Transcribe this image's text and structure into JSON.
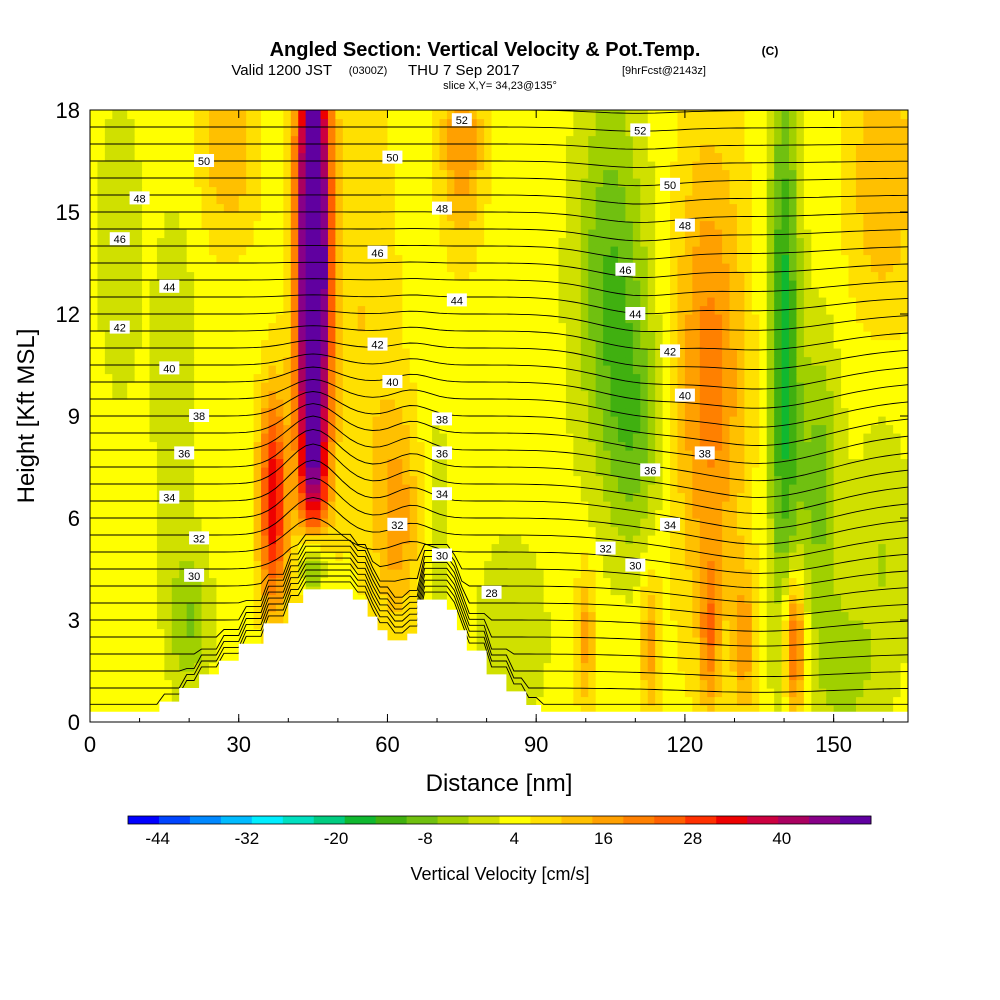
{
  "chart_data": {
    "type": "heatmap",
    "title": "Angled Section: Vertical Velocity & Pot.Temp.",
    "title_note": "(C)",
    "subtitle": {
      "valid": "Valid 1200 JST",
      "utc": "(0300Z)",
      "date": "THU 7 Sep 2017",
      "forecast": "[9hrFcst@2143z]"
    },
    "slice_label": "slice X,Y= 34,23@135°",
    "xlabel": "Distance [nm]",
    "ylabel": "Height [Kft MSL]",
    "xlim": [
      0,
      165
    ],
    "ylim": [
      0,
      18
    ],
    "x_ticks": [
      "0",
      "30",
      "60",
      "90",
      "120",
      "150"
    ],
    "y_ticks": [
      "0",
      "3",
      "6",
      "9",
      "12",
      "15",
      "18"
    ],
    "grid": false,
    "colorbar": {
      "label": "Vertical Velocity [cm/s]",
      "min": -48,
      "max": 52,
      "step": 4,
      "tick_labels": [
        "-44",
        "-32",
        "-20",
        "-8",
        "4",
        "16",
        "28",
        "40"
      ],
      "colors": [
        "#0000ff",
        "#0044ff",
        "#0088ff",
        "#00bbff",
        "#00eeff",
        "#00e0c0",
        "#00cc80",
        "#10b830",
        "#40b010",
        "#70c010",
        "#a0d000",
        "#d0e000",
        "#ffff00",
        "#ffe000",
        "#ffc000",
        "#ffa000",
        "#ff8000",
        "#ff6000",
        "#ff3000",
        "#ee0000",
        "#cc0040",
        "#aa0060",
        "#880088",
        "#6000a0"
      ]
    },
    "terrain_profile": [
      {
        "x": 0,
        "h": 0.3
      },
      {
        "x": 10,
        "h": 0.3
      },
      {
        "x": 14,
        "h": 0.6
      },
      {
        "x": 18,
        "h": 1.0
      },
      {
        "x": 22,
        "h": 1.4
      },
      {
        "x": 26,
        "h": 1.8
      },
      {
        "x": 30,
        "h": 2.3
      },
      {
        "x": 35,
        "h": 2.9
      },
      {
        "x": 40,
        "h": 3.5
      },
      {
        "x": 43,
        "h": 3.9
      },
      {
        "x": 47,
        "h": 3.9
      },
      {
        "x": 50,
        "h": 3.9
      },
      {
        "x": 53,
        "h": 3.6
      },
      {
        "x": 56,
        "h": 3.1
      },
      {
        "x": 58,
        "h": 2.7
      },
      {
        "x": 60,
        "h": 2.4
      },
      {
        "x": 62,
        "h": 2.4
      },
      {
        "x": 64,
        "h": 2.6
      },
      {
        "x": 66,
        "h": 3.6
      },
      {
        "x": 70,
        "h": 3.6
      },
      {
        "x": 72,
        "h": 3.3
      },
      {
        "x": 74,
        "h": 2.7
      },
      {
        "x": 76,
        "h": 2.1
      },
      {
        "x": 80,
        "h": 1.4
      },
      {
        "x": 84,
        "h": 0.9
      },
      {
        "x": 88,
        "h": 0.5
      },
      {
        "x": 91,
        "h": 0.3
      },
      {
        "x": 165,
        "h": 0.3
      }
    ],
    "velocity_features": [
      {
        "x": 45,
        "h": 10.5,
        "sx": 2.2,
        "sh": 6.0,
        "v": 46
      },
      {
        "x": 45,
        "h": 15.5,
        "sx": 2.5,
        "sh": 4.0,
        "v": 28
      },
      {
        "x": 37,
        "h": 6.5,
        "sx": 2.0,
        "sh": 2.2,
        "v": 30
      },
      {
        "x": 45,
        "h": 4.6,
        "sx": 2.0,
        "sh": 1.0,
        "v": -38
      },
      {
        "x": 62,
        "h": 6.0,
        "sx": 3.0,
        "sh": 2.2,
        "v": 12
      },
      {
        "x": 55,
        "h": 12.0,
        "sx": 5.0,
        "sh": 5.0,
        "v": 6
      },
      {
        "x": 70,
        "h": 5.5,
        "sx": 1.5,
        "sh": 2.5,
        "v": -6
      },
      {
        "x": 20,
        "h": 3.0,
        "sx": 3.0,
        "sh": 1.5,
        "v": -10
      },
      {
        "x": 17,
        "h": 10.0,
        "sx": 3.0,
        "sh": 3.5,
        "v": -6
      },
      {
        "x": 6,
        "h": 14.0,
        "sx": 3.0,
        "sh": 3.0,
        "v": -6
      },
      {
        "x": 105,
        "h": 13.0,
        "sx": 5.0,
        "sh": 4.0,
        "v": -14
      },
      {
        "x": 110,
        "h": 8.5,
        "sx": 4.0,
        "sh": 2.5,
        "v": -10
      },
      {
        "x": 125,
        "h": 10.0,
        "sx": 5.0,
        "sh": 5.0,
        "v": 16
      },
      {
        "x": 140,
        "h": 11.0,
        "sx": 2.2,
        "sh": 6.0,
        "v": -20
      },
      {
        "x": 147,
        "h": 7.0,
        "sx": 3.0,
        "sh": 3.0,
        "v": -12
      },
      {
        "x": 142,
        "h": 2.3,
        "sx": 1.5,
        "sh": 1.5,
        "v": 24
      },
      {
        "x": 125,
        "h": 2.5,
        "sx": 1.3,
        "sh": 1.5,
        "v": 14
      },
      {
        "x": 113,
        "h": 2.3,
        "sx": 1.3,
        "sh": 1.5,
        "v": 12
      },
      {
        "x": 100,
        "h": 2.5,
        "sx": 1.3,
        "sh": 1.5,
        "v": 12
      },
      {
        "x": 132,
        "h": 2.3,
        "sx": 1.5,
        "sh": 1.5,
        "v": 12
      },
      {
        "x": 85,
        "h": 2.5,
        "sx": 5.0,
        "sh": 2.0,
        "v": -6
      },
      {
        "x": 152,
        "h": 1.5,
        "sx": 4.0,
        "sh": 1.5,
        "v": -8
      },
      {
        "x": 160,
        "h": 5.0,
        "sx": 4.0,
        "sh": 3.0,
        "v": -6
      },
      {
        "x": 75,
        "h": 17.0,
        "sx": 3.0,
        "sh": 2.0,
        "v": 14
      },
      {
        "x": 28,
        "h": 17.0,
        "sx": 4.0,
        "sh": 2.0,
        "v": 10
      },
      {
        "x": 160,
        "h": 16.0,
        "sx": 5.0,
        "sh": 3.0,
        "v": 10
      }
    ],
    "isentrope_labels": [
      {
        "text": "52",
        "x": 75,
        "h": 17.7
      },
      {
        "text": "52",
        "x": 111,
        "h": 17.4
      },
      {
        "text": "50",
        "x": 23,
        "h": 16.5
      },
      {
        "text": "50",
        "x": 61,
        "h": 16.6
      },
      {
        "text": "50",
        "x": 117,
        "h": 15.8
      },
      {
        "text": "48",
        "x": 10,
        "h": 15.4
      },
      {
        "text": "48",
        "x": 71,
        "h": 15.1
      },
      {
        "text": "48",
        "x": 120,
        "h": 14.6
      },
      {
        "text": "46",
        "x": 6,
        "h": 14.2
      },
      {
        "text": "46",
        "x": 58,
        "h": 13.8
      },
      {
        "text": "46",
        "x": 108,
        "h": 13.3
      },
      {
        "text": "44",
        "x": 16,
        "h": 12.8
      },
      {
        "text": "44",
        "x": 74,
        "h": 12.4
      },
      {
        "text": "44",
        "x": 110,
        "h": 12.0
      },
      {
        "text": "42",
        "x": 6,
        "h": 11.6
      },
      {
        "text": "42",
        "x": 58,
        "h": 11.1
      },
      {
        "text": "42",
        "x": 117,
        "h": 10.9
      },
      {
        "text": "40",
        "x": 16,
        "h": 10.4
      },
      {
        "text": "40",
        "x": 61,
        "h": 10.0
      },
      {
        "text": "40",
        "x": 120,
        "h": 9.6
      },
      {
        "text": "38",
        "x": 22,
        "h": 9.0
      },
      {
        "text": "38",
        "x": 71,
        "h": 8.9
      },
      {
        "text": "38",
        "x": 124,
        "h": 7.9
      },
      {
        "text": "36",
        "x": 19,
        "h": 7.9
      },
      {
        "text": "36",
        "x": 71,
        "h": 7.9
      },
      {
        "text": "36",
        "x": 113,
        "h": 7.4
      },
      {
        "text": "34",
        "x": 16,
        "h": 6.6
      },
      {
        "text": "34",
        "x": 71,
        "h": 6.7
      },
      {
        "text": "34",
        "x": 117,
        "h": 5.8
      },
      {
        "text": "32",
        "x": 22,
        "h": 5.4
      },
      {
        "text": "32",
        "x": 62,
        "h": 5.8
      },
      {
        "text": "32",
        "x": 104,
        "h": 5.1
      },
      {
        "text": "30",
        "x": 21,
        "h": 4.3
      },
      {
        "text": "30",
        "x": 71,
        "h": 4.9
      },
      {
        "text": "30",
        "x": 110,
        "h": 4.6
      },
      {
        "text": "28",
        "x": 81,
        "h": 3.8
      }
    ]
  }
}
